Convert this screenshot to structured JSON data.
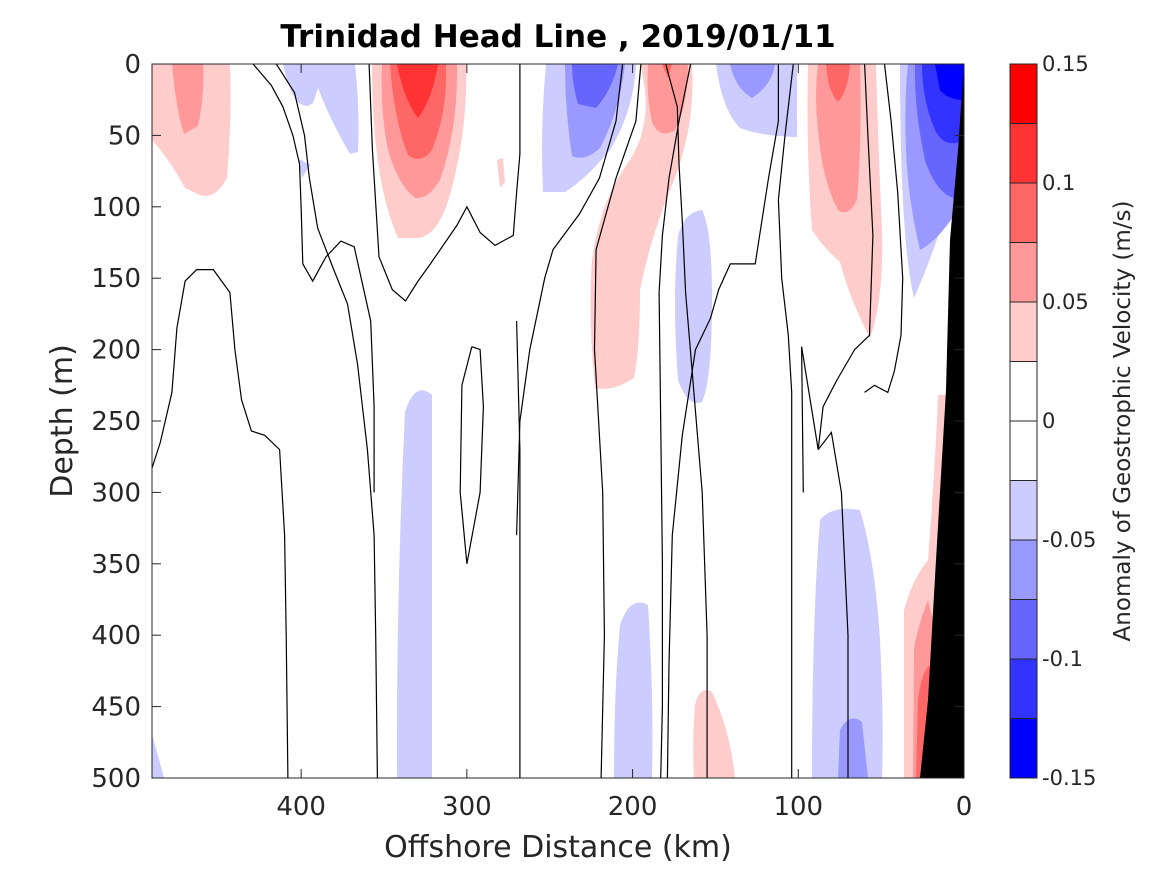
{
  "chart_data": {
    "type": "heatmap",
    "plot_style": "filled contour section",
    "title": "Trinidad Head Line , 2019/01/11",
    "xlabel": "Offshore Distance (km)",
    "ylabel": "Depth (m)",
    "xlim": [
      490,
      0
    ],
    "x_reversed": true,
    "ylim": [
      0,
      500
    ],
    "y_reversed": true,
    "x_ticks": [
      400,
      300,
      200,
      100,
      0
    ],
    "y_ticks": [
      0,
      50,
      100,
      150,
      200,
      250,
      300,
      350,
      400,
      450,
      500
    ],
    "colorbar": {
      "label": "Anomaly of Geostrophic Velocity (m/s)",
      "levels": [
        -0.15,
        -0.125,
        -0.1,
        -0.075,
        -0.05,
        -0.025,
        0,
        0.025,
        0.05,
        0.075,
        0.1,
        0.125,
        0.15
      ],
      "tick_values": [
        -0.15,
        -0.1,
        -0.05,
        0,
        0.05,
        0.1,
        0.15
      ],
      "tick_labels": [
        "-0.15",
        "-0.1",
        "-0.05",
        "0",
        "0.05",
        "0.1",
        "0.15"
      ],
      "colors": [
        "#0000ff",
        "#3333ff",
        "#6666ff",
        "#9999ff",
        "#ccccff",
        "#ffffff",
        "#ffffff",
        "#ffcccc",
        "#ff9999",
        "#ff6666",
        "#ff3333",
        "#ff0000"
      ]
    },
    "zero_contours": [
      [
        [
          415,
          0
        ],
        [
          404,
          20
        ],
        [
          398,
          50
        ],
        [
          395,
          80
        ],
        [
          390,
          115
        ],
        [
          380,
          145
        ],
        [
          372,
          168
        ],
        [
          366,
          210
        ],
        [
          360,
          270
        ],
        [
          356,
          330
        ],
        [
          355,
          400
        ],
        [
          354,
          500
        ]
      ],
      [
        [
          490,
          283
        ],
        [
          485,
          265
        ],
        [
          478,
          230
        ],
        [
          475,
          185
        ],
        [
          470,
          152
        ],
        [
          463,
          144
        ],
        [
          453,
          144
        ],
        [
          443,
          160
        ],
        [
          440,
          200
        ],
        [
          436,
          235
        ],
        [
          430,
          257
        ],
        [
          422,
          260
        ],
        [
          413,
          270
        ],
        [
          410,
          330
        ],
        [
          409,
          400
        ],
        [
          408,
          500
        ]
      ],
      [
        [
          429,
          0
        ],
        [
          418,
          15
        ],
        [
          411,
          30
        ],
        [
          405,
          50
        ],
        [
          401,
          70
        ],
        [
          400,
          100
        ],
        [
          399,
          140
        ],
        [
          393,
          152
        ],
        [
          385,
          135
        ],
        [
          376,
          124
        ],
        [
          368,
          128
        ],
        [
          358,
          180
        ],
        [
          356,
          240
        ],
        [
          356,
          300
        ]
      ],
      [
        [
          359,
          0
        ],
        [
          357,
          60
        ],
        [
          353,
          135
        ],
        [
          345,
          158
        ],
        [
          337,
          166
        ],
        [
          330,
          153
        ],
        [
          322,
          140
        ],
        [
          306,
          113
        ],
        [
          300,
          100
        ],
        [
          292,
          118
        ],
        [
          283,
          127
        ],
        [
          272,
          120
        ],
        [
          270,
          90
        ],
        [
          268,
          63
        ],
        [
          268,
          40
        ],
        [
          268,
          0
        ]
      ],
      [
        [
          297,
          198
        ],
        [
          303,
          225
        ],
        [
          304,
          300
        ],
        [
          300,
          350
        ],
        [
          292,
          300
        ],
        [
          290,
          240
        ],
        [
          292,
          200
        ],
        [
          297,
          198
        ]
      ],
      [
        [
          270,
          180
        ],
        [
          268,
          270
        ],
        [
          268,
          400
        ],
        [
          268,
          500
        ]
      ],
      [
        [
          206,
          0
        ],
        [
          210,
          40
        ],
        [
          220,
          80
        ],
        [
          232,
          105
        ],
        [
          248,
          130
        ],
        [
          253,
          150
        ],
        [
          262,
          200
        ],
        [
          268,
          250
        ],
        [
          270,
          330
        ]
      ],
      [
        [
          195,
          0
        ],
        [
          198,
          40
        ],
        [
          210,
          80
        ],
        [
          222,
          130
        ],
        [
          223,
          200
        ],
        [
          218,
          300
        ],
        [
          217,
          400
        ],
        [
          219,
          500
        ]
      ],
      [
        [
          180,
          0
        ],
        [
          173,
          30
        ],
        [
          172,
          70
        ],
        [
          170,
          110
        ],
        [
          168,
          160
        ],
        [
          163,
          230
        ],
        [
          158,
          300
        ],
        [
          155,
          400
        ],
        [
          155,
          500
        ]
      ],
      [
        [
          165,
          0
        ],
        [
          172,
          40
        ],
        [
          178,
          80
        ],
        [
          182,
          120
        ],
        [
          184,
          160
        ],
        [
          183,
          250
        ],
        [
          182,
          350
        ],
        [
          182,
          450
        ],
        [
          183,
          500
        ]
      ],
      [
        [
          112,
          0
        ],
        [
          112,
          40
        ],
        [
          118,
          80
        ],
        [
          126,
          140
        ],
        [
          141,
          140
        ],
        [
          148,
          158
        ],
        [
          153,
          178
        ],
        [
          162,
          200
        ],
        [
          170,
          260
        ],
        [
          176,
          330
        ],
        [
          178,
          420
        ],
        [
          179,
          500
        ]
      ],
      [
        [
          103,
          0
        ],
        [
          108,
          50
        ],
        [
          112,
          95
        ],
        [
          110,
          150
        ],
        [
          106,
          190
        ],
        [
          104,
          230
        ],
        [
          104,
          300
        ],
        [
          104,
          400
        ],
        [
          104,
          500
        ]
      ],
      [
        [
          48,
          0
        ],
        [
          44,
          40
        ],
        [
          40,
          90
        ],
        [
          37,
          150
        ],
        [
          38,
          190
        ],
        [
          42,
          215
        ],
        [
          46,
          230
        ],
        [
          54,
          225
        ],
        [
          60,
          230
        ]
      ],
      [
        [
          60,
          0
        ],
        [
          58,
          50
        ],
        [
          55,
          120
        ],
        [
          57,
          190
        ],
        [
          66,
          200
        ],
        [
          77,
          222
        ],
        [
          85,
          240
        ],
        [
          88,
          270
        ],
        [
          98,
          198
        ],
        [
          97,
          300
        ]
      ],
      [
        [
          88,
          270
        ],
        [
          80,
          258
        ],
        [
          74,
          300
        ],
        [
          70,
          400
        ],
        [
          70,
          500
        ]
      ]
    ]
  }
}
